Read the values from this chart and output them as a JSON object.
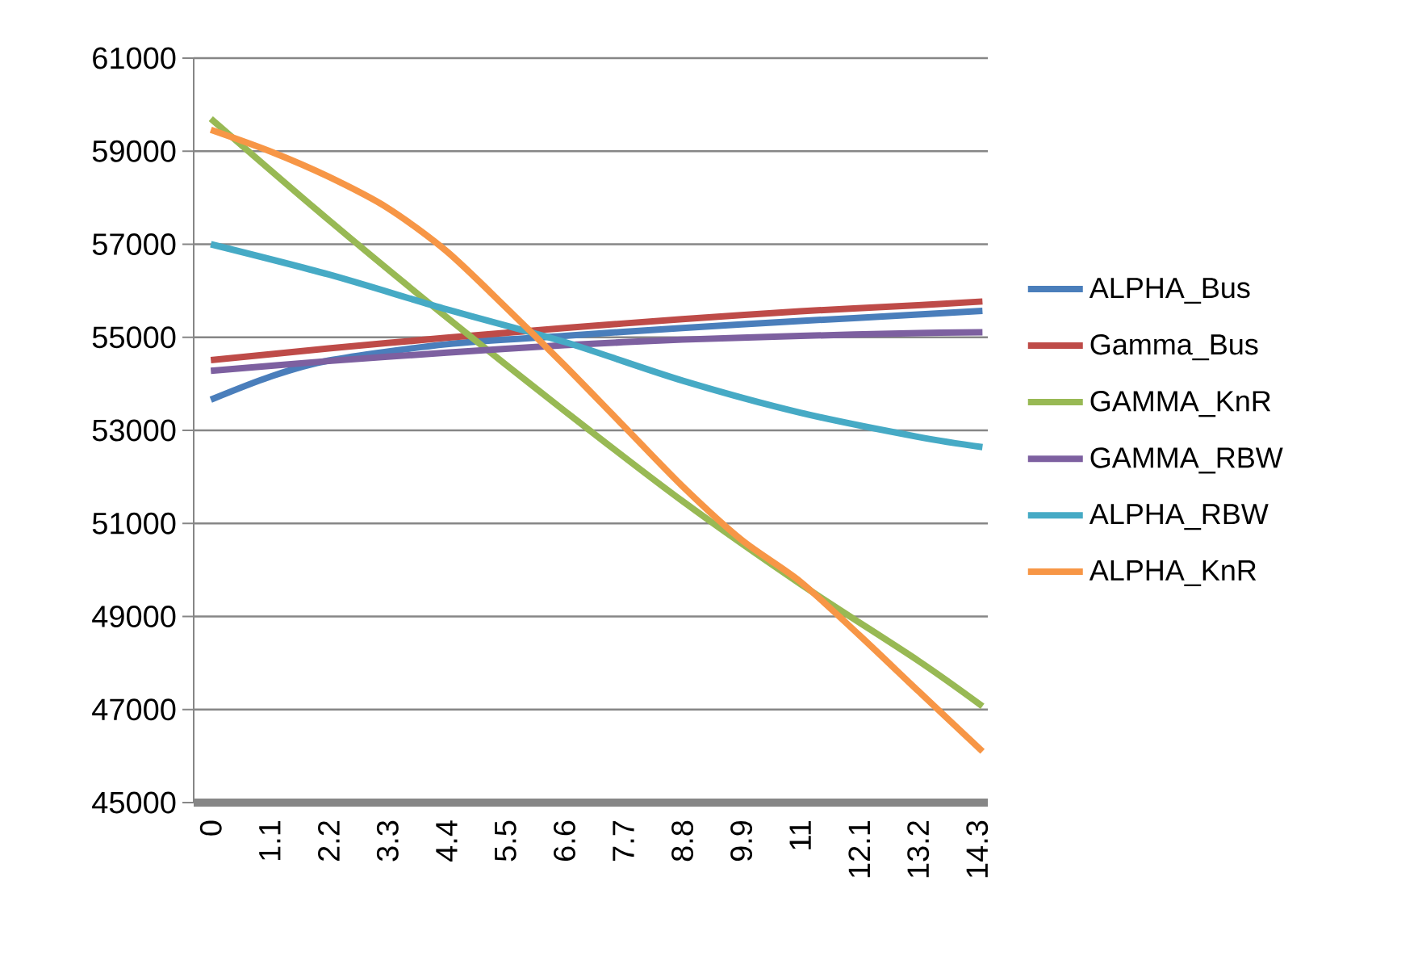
{
  "chart_data": {
    "type": "line",
    "xlim": [
      -0.32,
      14.5
    ],
    "xticks": [
      0,
      1.1,
      2.2,
      3.3,
      4.4,
      5.5,
      6.6,
      7.7,
      8.8,
      9.9,
      11,
      12.1,
      13.2,
      14.3
    ],
    "ylim": [
      45000,
      61000
    ],
    "yticks": [
      45000,
      47000,
      49000,
      51000,
      53000,
      55000,
      57000,
      59000,
      61000
    ],
    "grid": "y",
    "legend": "right",
    "marker": "none",
    "line_style": "solid",
    "series": [
      {
        "name": "ALPHA_Bus",
        "color": "#4a7ebb",
        "x": [
          0,
          1.1,
          2.2,
          4.4,
          6.6,
          8.8,
          11,
          13.2,
          14.4
        ],
        "values": [
          53660,
          54150,
          54500,
          54850,
          55030,
          55200,
          55350,
          55490,
          55570
        ]
      },
      {
        "name": "Gamma_Bus",
        "color": "#be4b48",
        "x": [
          0,
          2.2,
          4.4,
          6.6,
          8.8,
          11,
          13.2,
          14.4
        ],
        "values": [
          54510,
          54760,
          54990,
          55200,
          55390,
          55560,
          55690,
          55770
        ]
      },
      {
        "name": "GAMMA_KnR",
        "color": "#98b954",
        "x": [
          0,
          2.2,
          4.4,
          6.6,
          8.8,
          11,
          13.2,
          14.4
        ],
        "values": [
          59700,
          57520,
          55430,
          53420,
          51480,
          49700,
          48050,
          47070
        ]
      },
      {
        "name": "GAMMA_RBW",
        "color": "#7d60a0",
        "x": [
          0,
          2.2,
          4.4,
          6.6,
          8.8,
          11,
          13.2,
          14.4
        ],
        "values": [
          54280,
          54490,
          54670,
          54830,
          54950,
          55030,
          55090,
          55110
        ]
      },
      {
        "name": "ALPHA_RBW",
        "color": "#46aac5",
        "x": [
          0,
          2.2,
          4.4,
          6.6,
          8.8,
          11,
          13.2,
          14.4
        ],
        "values": [
          57000,
          56350,
          55600,
          54900,
          54070,
          53380,
          52860,
          52640
        ]
      },
      {
        "name": "ALPHA_KnR",
        "color": "#f79646",
        "x": [
          0,
          1.1,
          2.2,
          3.3,
          4.4,
          5.5,
          6.6,
          7.7,
          8.8,
          9.9,
          11,
          12.1,
          13.2,
          14.4
        ],
        "values": [
          59460,
          59000,
          58450,
          57780,
          56850,
          55650,
          54400,
          53100,
          51800,
          50650,
          49750,
          48600,
          47400,
          46100
        ]
      }
    ]
  }
}
